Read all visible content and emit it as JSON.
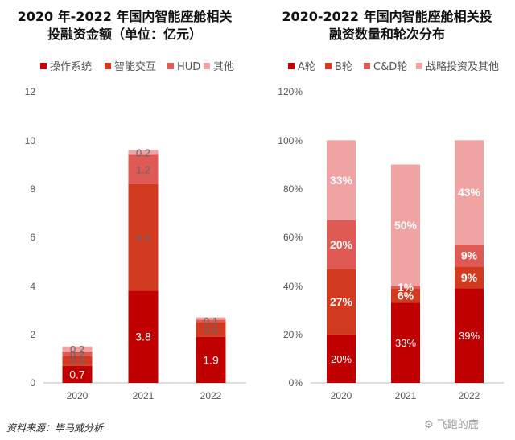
{
  "chart_data": [
    {
      "type": "bar",
      "stacked": true,
      "title_lines": [
        "2020 年-2022 年国内智能座舱相关",
        "投融资金额（单位：亿元）"
      ],
      "categories": [
        "2020",
        "2021",
        "2022"
      ],
      "series": [
        {
          "name": "操作系统",
          "color": "#c00000",
          "values": [
            0.7,
            3.8,
            1.9
          ]
        },
        {
          "name": "智能交互",
          "color": "#d13a1f",
          "values": [
            0.4,
            4.4,
            0.6
          ]
        },
        {
          "name": "HUD",
          "color": "#e05a55",
          "values": [
            0.2,
            1.2,
            0.1
          ]
        },
        {
          "name": "其他",
          "color": "#f0a3a3",
          "values": [
            0.2,
            0.2,
            0.1
          ]
        }
      ],
      "data_labels": [
        [
          "0.7",
          "3.8",
          "1.9"
        ],
        [
          "0.4",
          "4.4",
          "0.6"
        ],
        [
          "0.2",
          "1.2",
          "0.1"
        ],
        [
          "0.2",
          "0.2",
          ""
        ]
      ],
      "ylim": [
        0,
        12
      ],
      "yticks": [
        0,
        2,
        4,
        6,
        8,
        10,
        12
      ],
      "legend_position": "top"
    },
    {
      "type": "bar",
      "stacked": true,
      "title_lines": [
        "2020-2022 年国内智能座舱相关投",
        "融资数量和轮次分布"
      ],
      "categories": [
        "2020",
        "2021",
        "2022"
      ],
      "series": [
        {
          "name": "A轮",
          "color": "#c00000",
          "values": [
            20,
            33,
            39
          ]
        },
        {
          "name": "B轮",
          "color": "#d13a1f",
          "values": [
            27,
            6,
            9
          ]
        },
        {
          "name": "C&D轮",
          "color": "#e05a55",
          "values": [
            20,
            1,
            9
          ]
        },
        {
          "name": "战略投资及其他",
          "color": "#f0a3a3",
          "values": [
            33,
            50,
            43
          ]
        }
      ],
      "data_labels": [
        [
          "20%",
          "33%",
          "39%"
        ],
        [
          "27%",
          "6%",
          "9%"
        ],
        [
          "20%",
          "1%",
          "9%"
        ],
        [
          "33%",
          "50%",
          "43%"
        ]
      ],
      "ylim": [
        0,
        120
      ],
      "yticks": [
        "0%",
        "20%",
        "40%",
        "60%",
        "80%",
        "100%",
        "120%"
      ],
      "legend_position": "top"
    }
  ],
  "source": "资料来源：毕马威分析",
  "watermark": "飞跑的鹿"
}
